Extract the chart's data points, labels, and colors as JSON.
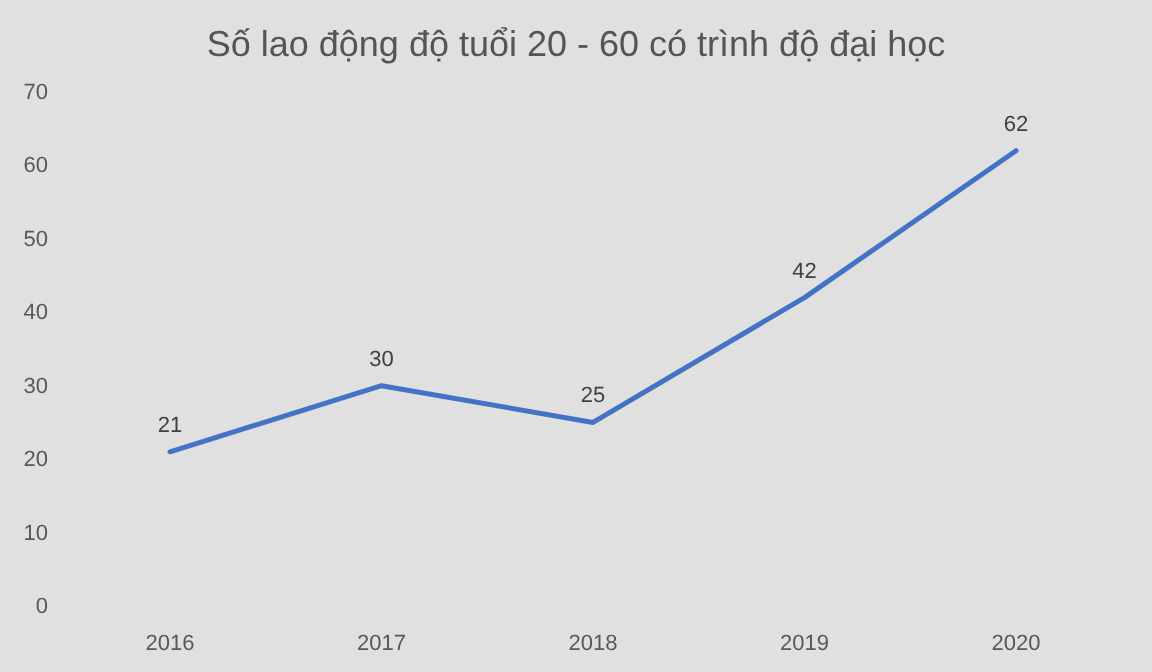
{
  "chart_data": {
    "type": "line",
    "title": "Số lao động độ tuổi 20 - 60 có trình độ đại học",
    "categories": [
      "2016",
      "2017",
      "2018",
      "2019",
      "2020"
    ],
    "series": [
      {
        "color": "#4472c4",
        "values": [
          21,
          30,
          25,
          42,
          62
        ]
      }
    ],
    "ylim": [
      0,
      70
    ],
    "yticks": [
      0,
      10,
      20,
      30,
      40,
      50,
      60,
      70
    ],
    "data_labels": true,
    "line_style": "solid"
  }
}
